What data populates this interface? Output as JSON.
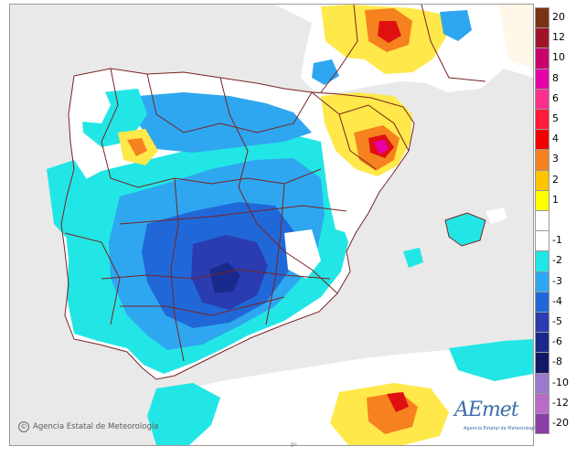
{
  "credit": {
    "symbol": "©",
    "text": "Agencia Estatal de Meteorología"
  },
  "logo": {
    "word": "AEmet",
    "subtitle": "Agencia Estatal de Meteorología"
  },
  "bottom_tick": "0°",
  "legend": [
    {
      "label": "20",
      "color": "#7a3212"
    },
    {
      "label": "12",
      "color": "#a0142a"
    },
    {
      "label": "10",
      "color": "#c8006e"
    },
    {
      "label": "8",
      "color": "#e600a8"
    },
    {
      "label": "6",
      "color": "#ff2f8c"
    },
    {
      "label": "5",
      "color": "#ff1b3a"
    },
    {
      "label": "4",
      "color": "#f00000"
    },
    {
      "label": "3",
      "color": "#f5821e"
    },
    {
      "label": "2",
      "color": "#ffc400"
    },
    {
      "label": "1",
      "color": "#ffff00"
    },
    {
      "label": "",
      "color": "#ffffff"
    },
    {
      "label": "-1",
      "color": "#ffffff"
    },
    {
      "label": "-2",
      "color": "#22e6e6"
    },
    {
      "label": "-3",
      "color": "#2ea7f0"
    },
    {
      "label": "-4",
      "color": "#2068d8"
    },
    {
      "label": "-5",
      "color": "#2a3cb0"
    },
    {
      "label": "-6",
      "color": "#1a2a8c"
    },
    {
      "label": "-8",
      "color": "#141868"
    },
    {
      "label": "-10",
      "color": "#9a7acc"
    },
    {
      "label": "-12",
      "color": "#b86cc8"
    },
    {
      "label": "-20",
      "color": "#8a3ea6"
    }
  ]
}
